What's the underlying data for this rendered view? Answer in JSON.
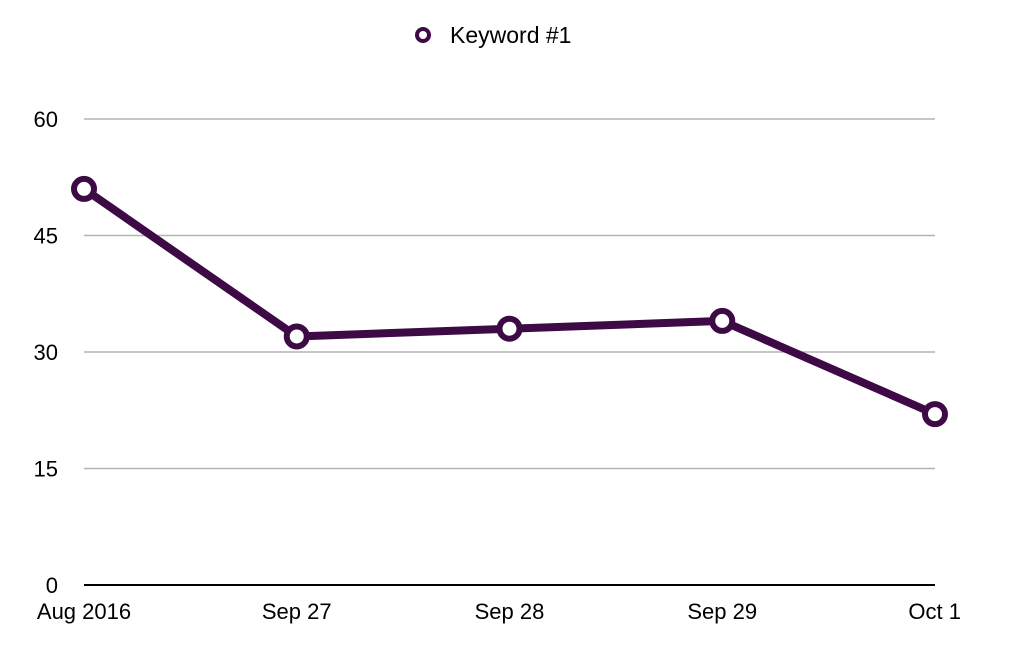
{
  "chart_data": {
    "type": "line",
    "title": "",
    "xlabel": "",
    "ylabel": "",
    "categories": [
      "Aug 2016",
      "Sep 27",
      "Sep 28",
      "Sep 29",
      "Oct 1"
    ],
    "series": [
      {
        "name": "Keyword #1",
        "values": [
          51,
          32,
          33,
          34,
          22
        ],
        "color": "#3d0a45"
      }
    ],
    "ylim": [
      0,
      60
    ],
    "yticks": [
      "0",
      "15",
      "30",
      "45",
      "60"
    ],
    "grid": true,
    "legend_position": "top-center",
    "colors": {
      "grid": "#b3b3b3",
      "axis": "#000000",
      "marker_fill": "#ffffff"
    }
  }
}
